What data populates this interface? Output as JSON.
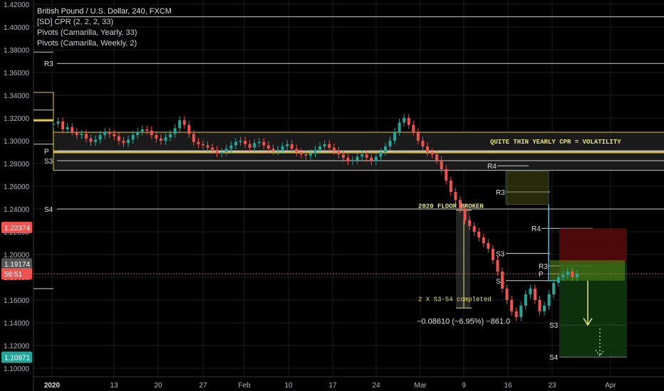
{
  "legend": {
    "title": "British Pound / U.S. Dollar, 240, FXCM",
    "line2": "[SD] CPR (2, 2, 2, 33)",
    "line3": "Pivots (Camarilla, Yearly, 33)",
    "line4": "Pivots (Camarilla, Weekly, 2)"
  },
  "colors": {
    "background": "#000000",
    "grid": "#1b1b1b",
    "axis_text": "#b2b5be",
    "up_candle": "#26a69a",
    "down_candle": "#ef5350",
    "cpr_yellow": "#e5c84a",
    "annotation_yellow": "#e6e67a",
    "pivot_line": "#cfcfcf",
    "weekly_blue": "#4fb6e8",
    "current_price": "#ef5350"
  },
  "chart_data": {
    "type": "candlestick",
    "symbol": "GBPUSD",
    "timeframe": "240",
    "ylim": [
      1.095,
      1.425
    ],
    "y_ticks": [
      "1.42000",
      "1.40000",
      "1.38000",
      "1.36000",
      "1.34000",
      "1.32000",
      "1.30000",
      "1.28000",
      "1.26000",
      "1.24000",
      "1.22000",
      "1.20000",
      "1.18000",
      "1.16000",
      "1.14000",
      "1.12000",
      "1.10000"
    ],
    "x_ticks": [
      "2020",
      "13",
      "20",
      "27",
      "Feb",
      "10",
      "17",
      "24",
      "Mar",
      "9",
      "16",
      "23",
      "Apr"
    ],
    "price_labels": [
      {
        "text": "1.22374",
        "value": 1.22374,
        "color": "#ef5350"
      },
      {
        "text": "1.19174",
        "value": 1.19174,
        "color": "#555555"
      },
      {
        "text": "58:51",
        "value": 1.183,
        "color": "#ef5350"
      },
      {
        "text": "1.10971",
        "value": 1.10971,
        "color": "#26a69a"
      }
    ],
    "current_price": 1.183,
    "yearly_pivots": [
      {
        "label": "R3",
        "value": 1.368
      },
      {
        "label": "S3",
        "value": 1.2825
      },
      {
        "label": "S4",
        "value": 1.24
      }
    ],
    "yearly_pivot_extra_lines": [
      1.409,
      1.291
    ],
    "yearly_p_label": "P",
    "yearly_cpr": {
      "top": 1.3075,
      "bottom": 1.274,
      "inner_top": 1.2915,
      "inner_bottom": 1.289
    },
    "weekly_pivots": [
      {
        "label": "R4",
        "value": 1.278
      },
      {
        "label": "R3",
        "value": 1.255
      },
      {
        "label": "R4",
        "value": 1.223
      },
      {
        "label": "S3",
        "value": 1.201
      },
      {
        "label": "R3",
        "value": 1.19
      },
      {
        "label": "P",
        "value": 1.183
      },
      {
        "label": "S4",
        "value": 1.177
      },
      {
        "label": "S3",
        "value": 1.138
      },
      {
        "label": "S4",
        "value": 1.11
      }
    ],
    "annotations": [
      {
        "text": "QUITE THIN YEARLY CPR = VOLATILITY"
      },
      {
        "text": "2020 FLOOR BROKEN"
      },
      {
        "text": "2 X S3-S4 completed"
      },
      {
        "text": "−0.08610 (−6.95%) −861.0"
      }
    ],
    "series_close": [
      1.315,
      1.317,
      1.31,
      1.312,
      1.308,
      1.305,
      1.306,
      1.302,
      1.299,
      1.301,
      1.305,
      1.308,
      1.306,
      1.304,
      1.3,
      1.298,
      1.301,
      1.305,
      1.308,
      1.31,
      1.309,
      1.305,
      1.302,
      1.3,
      1.303,
      1.306,
      1.311,
      1.318,
      1.314,
      1.306,
      1.299,
      1.297,
      1.296,
      1.294,
      1.292,
      1.289,
      1.29,
      1.293,
      1.296,
      1.299,
      1.3,
      1.297,
      1.294,
      1.298,
      1.299,
      1.296,
      1.293,
      1.291,
      1.292,
      1.295,
      1.297,
      1.293,
      1.29,
      1.288,
      1.287,
      1.289,
      1.292,
      1.295,
      1.297,
      1.294,
      1.291,
      1.288,
      1.285,
      1.282,
      1.283,
      1.286,
      1.288,
      1.285,
      1.282,
      1.286,
      1.29,
      1.295,
      1.3,
      1.308,
      1.316,
      1.32,
      1.314,
      1.308,
      1.3,
      1.295,
      1.29,
      1.288,
      1.283,
      1.275,
      1.265,
      1.255,
      1.248,
      1.24,
      1.23,
      1.225,
      1.22,
      1.215,
      1.21,
      1.205,
      1.195,
      1.185,
      1.17,
      1.16,
      1.15,
      1.145,
      1.155,
      1.165,
      1.17,
      1.16,
      1.15,
      1.155,
      1.165,
      1.175,
      1.18,
      1.182,
      1.185,
      1.18,
      1.183
    ]
  }
}
